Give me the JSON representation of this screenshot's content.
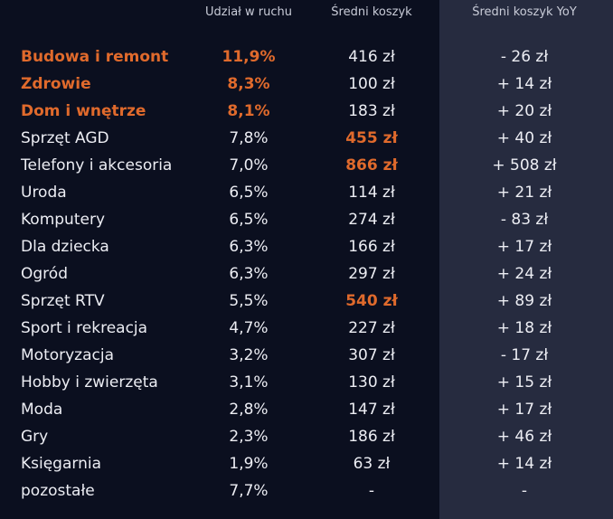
{
  "colors": {
    "background": "#0b0f1f",
    "yoy_panel": "#262b3f",
    "highlight": "#e06a2c",
    "text": "#ecedf3"
  },
  "headers": {
    "share": "Udział w ruchu",
    "basket": "Średni koszyk",
    "yoy": "Średni koszyk YoY"
  },
  "rows": [
    {
      "name": "Budowa i remont",
      "share": "11,9%",
      "basket": "416 zł",
      "yoy": "- 26 zł",
      "highlight": [
        "name",
        "share"
      ]
    },
    {
      "name": "Zdrowie",
      "share": "8,3%",
      "basket": "100 zł",
      "yoy": "+ 14 zł",
      "highlight": [
        "name",
        "share"
      ]
    },
    {
      "name": "Dom i wnętrze",
      "share": "8,1%",
      "basket": "183 zł",
      "yoy": "+ 20 zł",
      "highlight": [
        "name",
        "share"
      ]
    },
    {
      "name": "Sprzęt AGD",
      "share": "7,8%",
      "basket": "455 zł",
      "yoy": "+ 40 zł",
      "highlight": [
        "basket"
      ]
    },
    {
      "name": "Telefony i akcesoria",
      "share": "7,0%",
      "basket": "866 zł",
      "yoy": "+ 508 zł",
      "highlight": [
        "basket"
      ]
    },
    {
      "name": "Uroda",
      "share": "6,5%",
      "basket": "114 zł",
      "yoy": "+ 21 zł",
      "highlight": []
    },
    {
      "name": "Komputery",
      "share": "6,5%",
      "basket": "274 zł",
      "yoy": "- 83 zł",
      "highlight": []
    },
    {
      "name": "Dla dziecka",
      "share": "6,3%",
      "basket": "166 zł",
      "yoy": "+ 17 zł",
      "highlight": []
    },
    {
      "name": "Ogród",
      "share": "6,3%",
      "basket": "297 zł",
      "yoy": "+ 24 zł",
      "highlight": []
    },
    {
      "name": "Sprzęt RTV",
      "share": "5,5%",
      "basket": "540 zł",
      "yoy": "+ 89 zł",
      "highlight": [
        "basket"
      ]
    },
    {
      "name": "Sport i rekreacja",
      "share": "4,7%",
      "basket": "227 zł",
      "yoy": "+ 18 zł",
      "highlight": []
    },
    {
      "name": "Motoryzacja",
      "share": "3,2%",
      "basket": "307 zł",
      "yoy": "- 17 zł",
      "highlight": []
    },
    {
      "name": "Hobby i zwierzęta",
      "share": "3,1%",
      "basket": "130 zł",
      "yoy": "+ 15 zł",
      "highlight": []
    },
    {
      "name": "Moda",
      "share": "2,8%",
      "basket": "147 zł",
      "yoy": "+ 17 zł",
      "highlight": []
    },
    {
      "name": "Gry",
      "share": "2,3%",
      "basket": "186 zł",
      "yoy": "+ 46 zł",
      "highlight": []
    },
    {
      "name": "Księgarnia",
      "share": "1,9%",
      "basket": "63 zł",
      "yoy": "+ 14 zł",
      "highlight": []
    },
    {
      "name": "pozostałe",
      "share": "7,7%",
      "basket": "-",
      "yoy": "-",
      "highlight": []
    }
  ]
}
